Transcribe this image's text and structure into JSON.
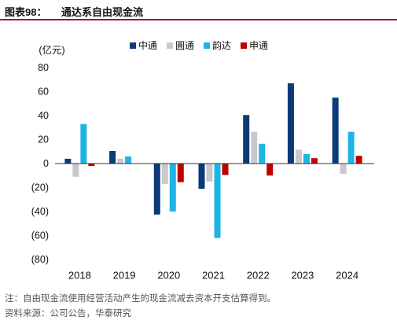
{
  "header": {
    "label": "图表98：",
    "title": "通达系自由现金流"
  },
  "chart_data": {
    "type": "bar",
    "title": "通达系自由现金流",
    "ylabel": "(亿元)",
    "xlabel": "",
    "categories": [
      "2018",
      "2019",
      "2020",
      "2021",
      "2022",
      "2023",
      "2024"
    ],
    "series": [
      {
        "name": "中通",
        "color": "#0a3a78",
        "values": [
          4,
          10.5,
          -42.5,
          -21,
          40.5,
          67,
          55
        ]
      },
      {
        "name": "圓通",
        "color": "#c9c9c9",
        "values": [
          -11,
          4,
          -17,
          -15,
          26.5,
          11.5,
          -8.5
        ]
      },
      {
        "name": "韵达",
        "color": "#1eb4e6",
        "values": [
          33,
          6,
          -40,
          -62,
          16.5,
          8,
          26.5
        ]
      },
      {
        "name": "申通",
        "color": "#c00000",
        "values": [
          -2,
          0,
          -15.5,
          -9.5,
          -10,
          4.5,
          6.5
        ]
      }
    ],
    "ylim": [
      -80,
      80
    ],
    "yticks": [
      80,
      60,
      40,
      20,
      0,
      -20,
      -40,
      -60,
      -80
    ],
    "ytick_labels": [
      "80",
      "60",
      "40",
      "20",
      "0",
      "(20)",
      "(40)",
      "(60)",
      "(80)"
    ],
    "grid": false,
    "legend_position": "top-center"
  },
  "footer": {
    "note": "注：自由现金流使用经营活动产生的现金流减去资本开支估算得到。",
    "source": "资料来源：公司公告，华泰研究"
  }
}
